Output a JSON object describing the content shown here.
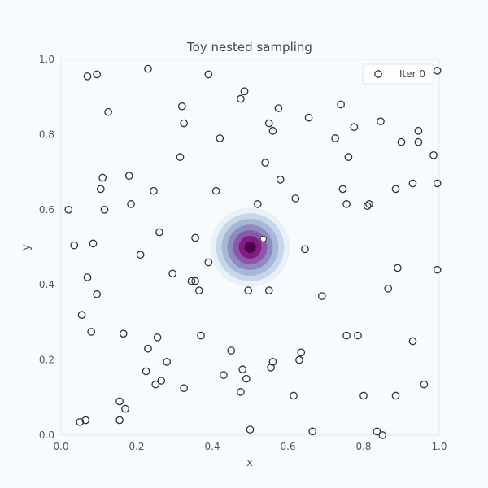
{
  "chart_data": {
    "type": "scatter",
    "title": "Toy nested sampling",
    "xlabel": "x",
    "ylabel": "y",
    "xlim": [
      0.0,
      1.0
    ],
    "ylim": [
      0.0,
      1.0
    ],
    "xticks": [
      "0.0",
      "0.2",
      "0.4",
      "0.6",
      "0.8",
      "1.0"
    ],
    "yticks": [
      "0.0",
      "0.2",
      "0.4",
      "0.6",
      "0.8",
      "1.0"
    ],
    "grid": false,
    "legend": {
      "position": "top-right",
      "entries": [
        "Iter 0"
      ]
    },
    "background_density": {
      "kind": "radial-gaussian",
      "center": [
        0.5,
        0.5
      ],
      "sigma": 0.04,
      "extent": 0.105,
      "colormap": [
        "#e9f1f7",
        "#c7d6e8",
        "#a6b7d8",
        "#8c8cc1",
        "#8a58a8",
        "#861a84",
        "#4d004b"
      ]
    },
    "highlight_point": {
      "x": 0.535,
      "y": 0.522,
      "color": "#ffffff"
    },
    "series": [
      {
        "name": "Iter 0",
        "marker": "open-circle",
        "color": "#333333",
        "points": [
          [
            0.07,
            0.955
          ],
          [
            0.095,
            0.96
          ],
          [
            0.23,
            0.975
          ],
          [
            0.39,
            0.96
          ],
          [
            0.995,
            0.97
          ],
          [
            0.125,
            0.86
          ],
          [
            0.32,
            0.875
          ],
          [
            0.475,
            0.895
          ],
          [
            0.485,
            0.915
          ],
          [
            0.575,
            0.87
          ],
          [
            0.74,
            0.88
          ],
          [
            0.325,
            0.83
          ],
          [
            0.55,
            0.83
          ],
          [
            0.56,
            0.81
          ],
          [
            0.655,
            0.845
          ],
          [
            0.775,
            0.82
          ],
          [
            0.845,
            0.835
          ],
          [
            0.945,
            0.81
          ],
          [
            0.42,
            0.79
          ],
          [
            0.725,
            0.79
          ],
          [
            0.9,
            0.78
          ],
          [
            0.945,
            0.78
          ],
          [
            0.315,
            0.74
          ],
          [
            0.76,
            0.74
          ],
          [
            0.985,
            0.745
          ],
          [
            0.54,
            0.725
          ],
          [
            0.11,
            0.685
          ],
          [
            0.18,
            0.69
          ],
          [
            0.58,
            0.68
          ],
          [
            0.105,
            0.655
          ],
          [
            0.245,
            0.65
          ],
          [
            0.41,
            0.65
          ],
          [
            0.745,
            0.655
          ],
          [
            0.885,
            0.655
          ],
          [
            0.93,
            0.67
          ],
          [
            0.995,
            0.67
          ],
          [
            0.185,
            0.615
          ],
          [
            0.62,
            0.63
          ],
          [
            0.755,
            0.615
          ],
          [
            0.81,
            0.61
          ],
          [
            0.815,
            0.615
          ],
          [
            0.52,
            0.615
          ],
          [
            0.02,
            0.6
          ],
          [
            0.115,
            0.6
          ],
          [
            0.26,
            0.54
          ],
          [
            0.355,
            0.525
          ],
          [
            0.035,
            0.505
          ],
          [
            0.085,
            0.51
          ],
          [
            0.645,
            0.495
          ],
          [
            0.21,
            0.48
          ],
          [
            0.39,
            0.46
          ],
          [
            0.295,
            0.43
          ],
          [
            0.07,
            0.42
          ],
          [
            0.345,
            0.41
          ],
          [
            0.355,
            0.41
          ],
          [
            0.89,
            0.445
          ],
          [
            0.995,
            0.44
          ],
          [
            0.095,
            0.375
          ],
          [
            0.365,
            0.385
          ],
          [
            0.495,
            0.385
          ],
          [
            0.55,
            0.385
          ],
          [
            0.69,
            0.37
          ],
          [
            0.865,
            0.39
          ],
          [
            0.055,
            0.32
          ],
          [
            0.08,
            0.275
          ],
          [
            0.165,
            0.27
          ],
          [
            0.255,
            0.26
          ],
          [
            0.37,
            0.265
          ],
          [
            0.755,
            0.265
          ],
          [
            0.785,
            0.265
          ],
          [
            0.93,
            0.25
          ],
          [
            0.23,
            0.23
          ],
          [
            0.45,
            0.225
          ],
          [
            0.635,
            0.22
          ],
          [
            0.28,
            0.195
          ],
          [
            0.56,
            0.195
          ],
          [
            0.63,
            0.2
          ],
          [
            0.555,
            0.18
          ],
          [
            0.225,
            0.17
          ],
          [
            0.48,
            0.175
          ],
          [
            0.43,
            0.16
          ],
          [
            0.265,
            0.145
          ],
          [
            0.49,
            0.15
          ],
          [
            0.25,
            0.135
          ],
          [
            0.96,
            0.135
          ],
          [
            0.325,
            0.125
          ],
          [
            0.475,
            0.115
          ],
          [
            0.615,
            0.105
          ],
          [
            0.8,
            0.105
          ],
          [
            0.885,
            0.105
          ],
          [
            0.155,
            0.09
          ],
          [
            0.17,
            0.07
          ],
          [
            0.155,
            0.04
          ],
          [
            0.05,
            0.035
          ],
          [
            0.065,
            0.04
          ],
          [
            0.5,
            0.015
          ],
          [
            0.665,
            0.01
          ],
          [
            0.835,
            0.01
          ],
          [
            0.85,
            0.0
          ]
        ]
      }
    ]
  }
}
